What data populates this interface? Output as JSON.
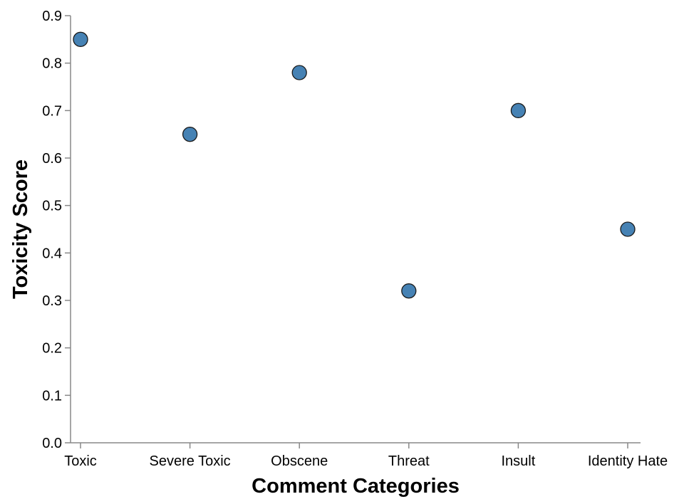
{
  "chart_data": {
    "type": "scatter",
    "title": "",
    "xlabel": "Comment Categories",
    "ylabel": "Toxicity Score",
    "categories": [
      "Toxic",
      "Severe Toxic",
      "Obscene",
      "Threat",
      "Insult",
      "Identity Hate"
    ],
    "values": [
      0.85,
      0.65,
      0.78,
      0.32,
      0.7,
      0.45
    ],
    "ylim": [
      0,
      0.9
    ],
    "yticks": [
      "0.0",
      "0.1",
      "0.2",
      "0.3",
      "0.4",
      "0.5",
      "0.6",
      "0.7",
      "0.8",
      "0.9"
    ],
    "grid": false,
    "legend": "none",
    "point_color": "#4682b4",
    "point_stroke": "#1a1a1a"
  }
}
